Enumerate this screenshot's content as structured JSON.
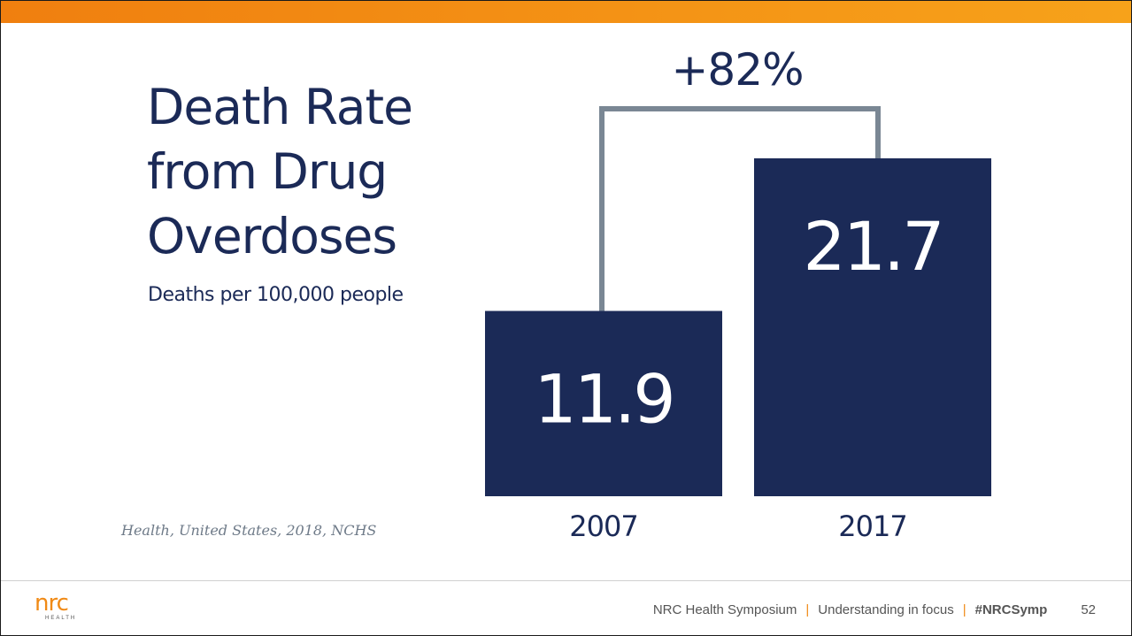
{
  "slide": {
    "title_lines": [
      "Death Rate",
      "from Drug",
      "Overdoses"
    ],
    "subtitle": "Deaths per 100,000 people",
    "source": "Health, United States, 2018, NCHS"
  },
  "chart_data": {
    "type": "bar",
    "title": "Death Rate from Drug Overdoses",
    "ylabel": "Deaths per 100,000 people",
    "categories": [
      "2007",
      "2017"
    ],
    "values": [
      11.9,
      21.7
    ],
    "value_labels": [
      "11.9",
      "21.7"
    ],
    "annotation": "+82%",
    "ylim": [
      0,
      21.7
    ],
    "grid": false,
    "legend": "none",
    "bar_color": "#1b2a57",
    "bracket_color": "#7a8794"
  },
  "footer": {
    "logo_text": "nrc",
    "logo_sub": "HEALTH",
    "event": "NRC Health Symposium",
    "tagline": "Understanding in focus",
    "hashtag": "#NRCSymp",
    "page_number": "52"
  },
  "colors": {
    "accent": "#f08a16",
    "navy": "#1b2a57",
    "gray": "#7a8794"
  }
}
